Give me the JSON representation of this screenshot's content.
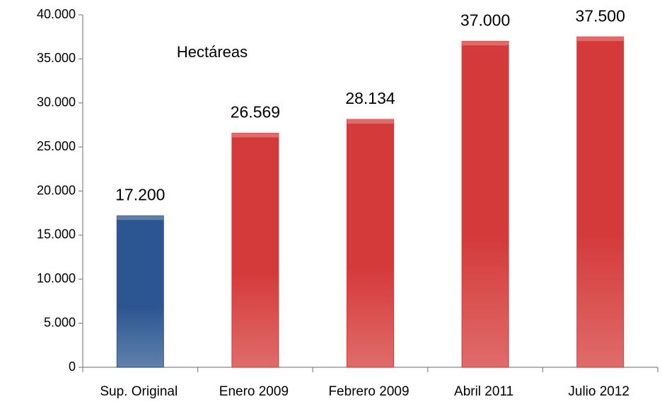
{
  "chart_data": {
    "type": "bar",
    "annotation": "Hectáreas",
    "categories": [
      "Sup. Original",
      "Enero 2009",
      "Febrero 2009",
      "Abril 2011",
      "Julio 2012"
    ],
    "values": [
      17200,
      26569,
      28134,
      37000,
      37500
    ],
    "value_labels": [
      "17.200",
      "26.569",
      "28.134",
      "37.000",
      "37.500"
    ],
    "colors": [
      "#2b5691",
      "#d53a3a",
      "#d53a3a",
      "#d53a3a",
      "#d53a3a"
    ],
    "ylim": [
      0,
      40000
    ],
    "yticks": [
      {
        "value": 0,
        "label": "0"
      },
      {
        "value": 5000,
        "label": "5.000"
      },
      {
        "value": 10000,
        "label": "10.000"
      },
      {
        "value": 15000,
        "label": "15.000"
      },
      {
        "value": 20000,
        "label": "20.000"
      },
      {
        "value": 25000,
        "label": "25.000"
      },
      {
        "value": 30000,
        "label": "30.000"
      },
      {
        "value": 35000,
        "label": "35.000"
      },
      {
        "value": 40000,
        "label": "40.000"
      }
    ],
    "grid": false
  }
}
